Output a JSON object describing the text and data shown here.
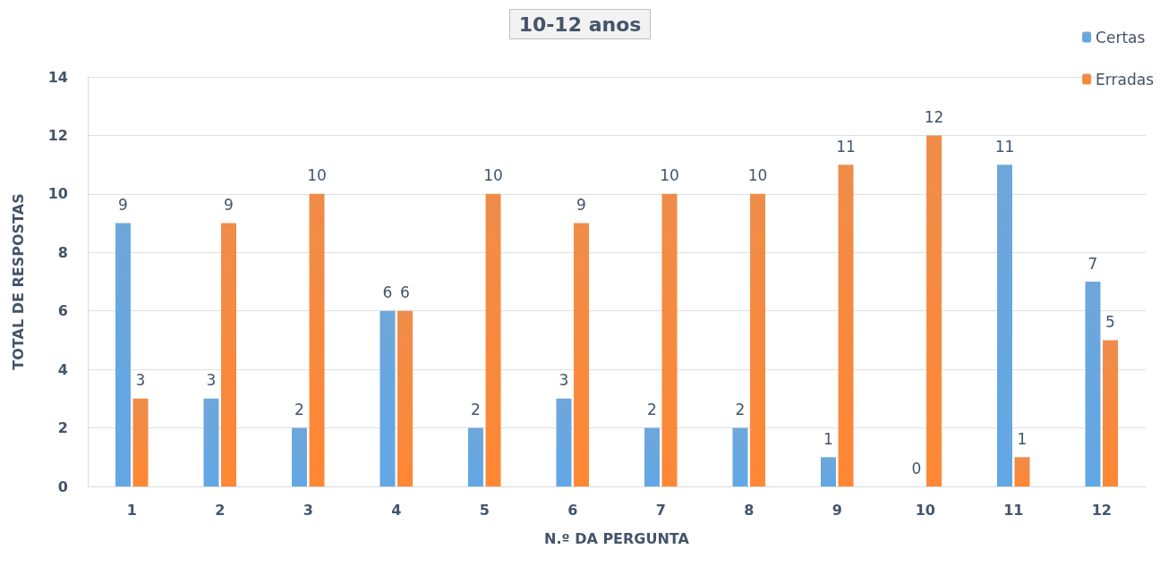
{
  "chart_data": {
    "type": "bar",
    "title": "10-12 anos",
    "xlabel": "N.º DA PERGUNTA",
    "ylabel": "TOTAL DE RESPOSTAS",
    "categories": [
      "1",
      "2",
      "3",
      "4",
      "5",
      "6",
      "7",
      "8",
      "9",
      "10",
      "11",
      "12"
    ],
    "series": [
      {
        "name": "Certas",
        "color": "#5b9bd5",
        "values": [
          9,
          3,
          2,
          6,
          2,
          3,
          2,
          2,
          1,
          0,
          11,
          7
        ]
      },
      {
        "name": "Erradas",
        "color": "#ed7d31",
        "values": [
          3,
          9,
          10,
          6,
          10,
          9,
          10,
          10,
          11,
          12,
          1,
          5
        ]
      }
    ],
    "ylim": [
      0,
      14
    ],
    "yticks": [
      0,
      2,
      4,
      6,
      8,
      10,
      12,
      14
    ],
    "grid": "y",
    "legend": "top right",
    "data_labels": true
  }
}
